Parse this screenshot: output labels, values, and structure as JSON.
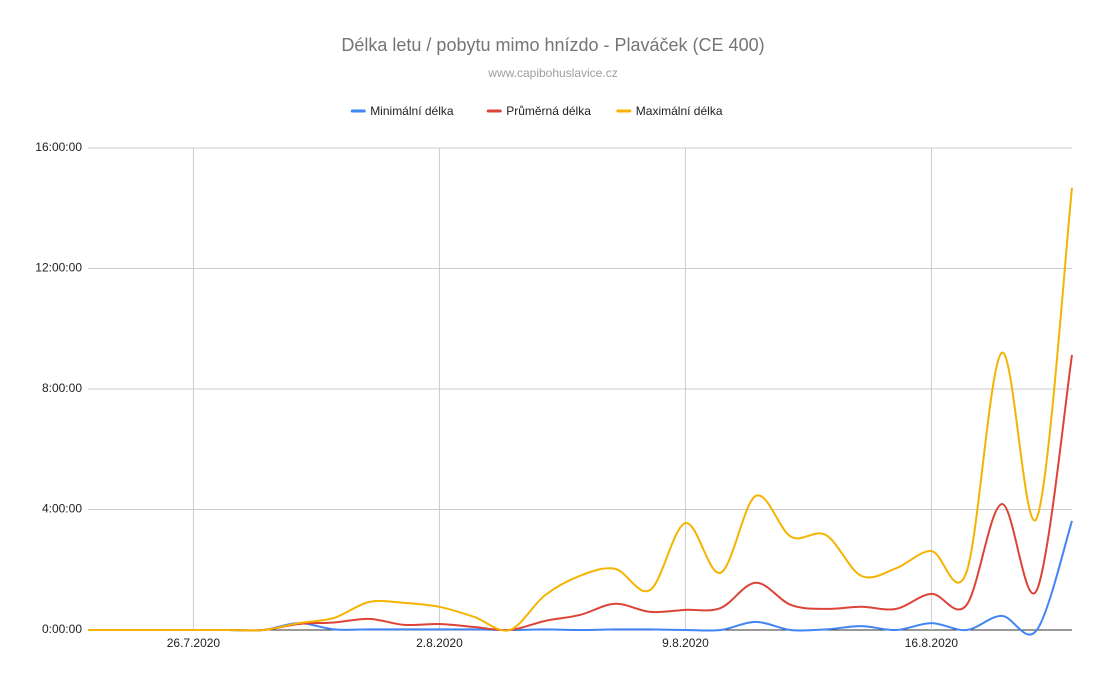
{
  "chart_data": {
    "type": "line",
    "title": "Délka letu / pobytu mimo hnízdo - Plaváček (CE 400)",
    "subtitle": "www.capibohuslavice.cz",
    "categories": [
      null,
      null,
      null,
      "26.7.2020",
      null,
      null,
      null,
      null,
      null,
      null,
      "2.8.2020",
      null,
      null,
      null,
      null,
      null,
      null,
      "9.8.2020",
      null,
      null,
      null,
      null,
      null,
      null,
      "16.8.2020",
      null,
      null,
      null,
      null
    ],
    "series": [
      {
        "name": "Minimální délka",
        "color": "#4285f4",
        "values": [
          0,
          0,
          0,
          0,
          0,
          0,
          0.23,
          0.02,
          0.02,
          0.02,
          0.02,
          0.02,
          0,
          0.02,
          0,
          0.02,
          0.02,
          0,
          0,
          0.27,
          0,
          0.02,
          0.13,
          0,
          0.23,
          0,
          0.47,
          0,
          3.62
        ]
      },
      {
        "name": "Průměrná délka",
        "color": "#db4437",
        "values": [
          0,
          0,
          0,
          0,
          0,
          0,
          0.2,
          0.25,
          0.37,
          0.17,
          0.2,
          0.1,
          0,
          0.3,
          0.5,
          0.87,
          0.6,
          0.67,
          0.73,
          1.57,
          0.83,
          0.7,
          0.77,
          0.7,
          1.2,
          0.83,
          4.18,
          1.33,
          9.13
        ]
      },
      {
        "name": "Maximální délka",
        "color": "#f4b400",
        "values": [
          0,
          0,
          0,
          0,
          0,
          0,
          0.23,
          0.4,
          0.93,
          0.9,
          0.77,
          0.43,
          0,
          1.15,
          1.8,
          2.03,
          1.33,
          3.55,
          1.9,
          4.45,
          3.1,
          3.15,
          1.8,
          2.05,
          2.62,
          1.93,
          9.2,
          3.72,
          14.68
        ]
      }
    ],
    "ylim": [
      0,
      16
    ],
    "yticks": [
      {
        "value": 0,
        "label": "0:00:00"
      },
      {
        "value": 4,
        "label": "4:00:00"
      },
      {
        "value": 8,
        "label": "8:00:00"
      },
      {
        "value": 12,
        "label": "12:00:00"
      },
      {
        "value": 16,
        "label": "16:00:00"
      }
    ],
    "grid": true,
    "legend": "top"
  }
}
